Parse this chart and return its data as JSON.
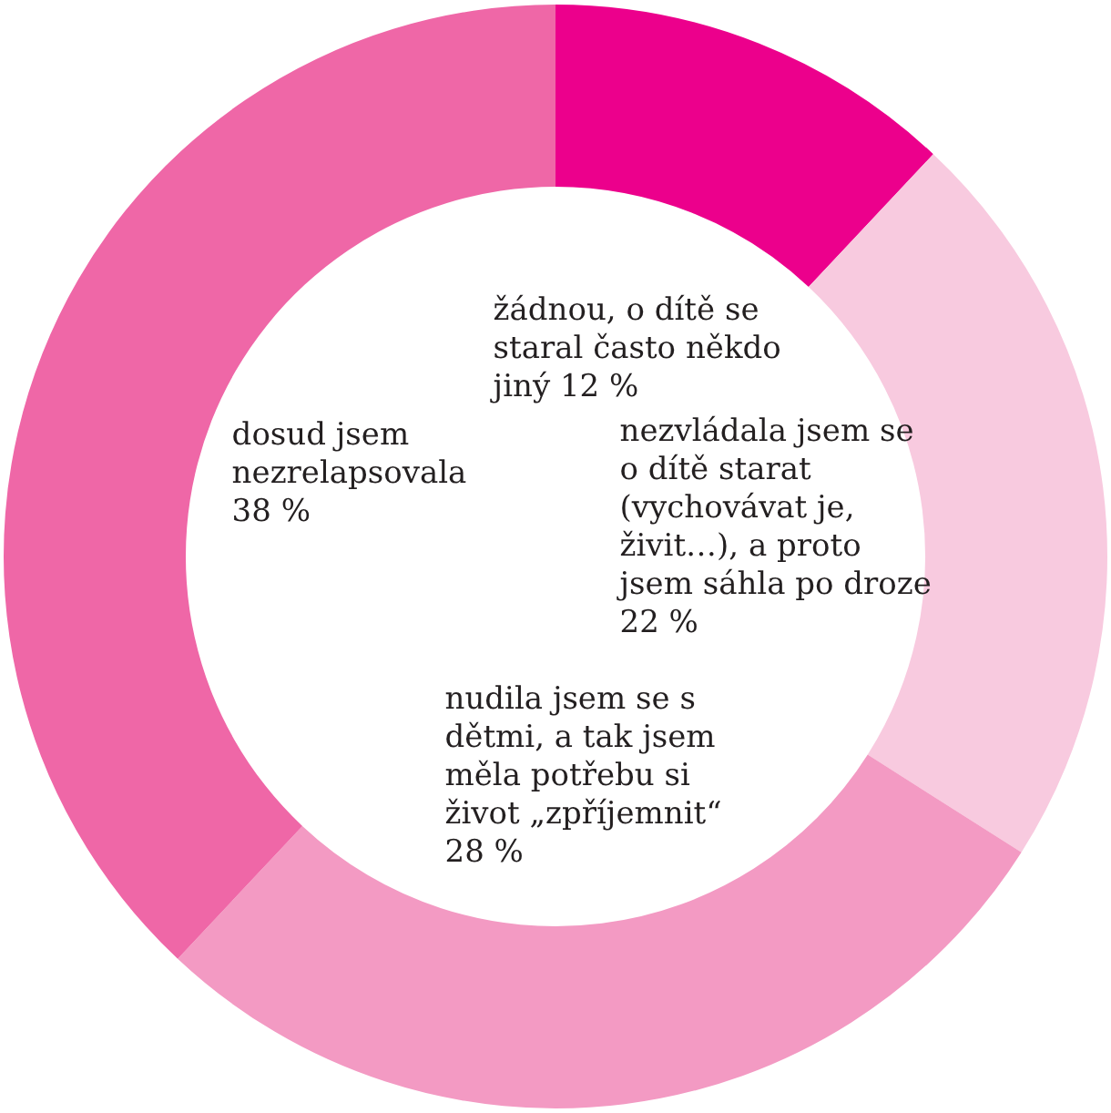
{
  "chart_data": {
    "type": "donut",
    "categories": [
      "žádnou, o dítě se staral často někdo jiný",
      "nezvládala jsem se o dítě starat (vychovávat je, živit…), a proto jsem sáhla po droze",
      "nudila jsem se s dětmi, a tak jsem měla potřebu si život „zpříjemnit“",
      "dosud jsem nezrelapsovala"
    ],
    "values": [
      12,
      22,
      28,
      38
    ],
    "value_labels": [
      "12 %",
      "22 %",
      "28 %",
      "38 %"
    ],
    "colors": [
      "#ec008c",
      "#f8cadf",
      "#f39ac3",
      "#ef67a7"
    ],
    "legend": false
  }
}
